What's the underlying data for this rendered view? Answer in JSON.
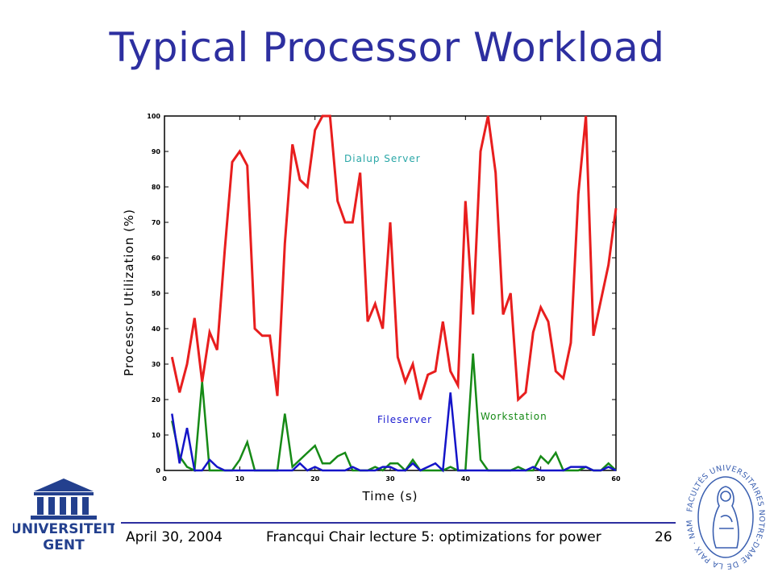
{
  "slide": {
    "title": "Typical Processor Workload"
  },
  "footer": {
    "date": "April 30, 2004",
    "lecture": "Francqui Chair lecture 5: optimizations for power",
    "page": "26"
  },
  "logos": {
    "left_text_top": "UNIVERSITEIT",
    "left_text_bottom": "GENT",
    "right_seal_text": "FACULTÉS UNIVERSITAIRES NOTRE-DAME DE LA PAIX · NAMUR"
  },
  "colors": {
    "title": "#2d2fa0",
    "dialup": "#e81e1e",
    "fileserver": "#1414c8",
    "workstation": "#168a16",
    "dialup_label": "#2aa7a7",
    "fileserver_label": "#1a1ad0",
    "workstation_label": "#168a16"
  },
  "chart_data": {
    "type": "line",
    "xlabel": "Time (s)",
    "ylabel": "Processor Utilization (%)",
    "xlim": [
      0,
      60
    ],
    "ylim": [
      0,
      100
    ],
    "xticks": [
      0,
      10,
      20,
      30,
      40,
      50,
      60
    ],
    "yticks": [
      0,
      10,
      20,
      30,
      40,
      50,
      60,
      70,
      80,
      90,
      100
    ],
    "grid": false,
    "x": [
      1,
      2,
      3,
      4,
      5,
      6,
      7,
      8,
      9,
      10,
      11,
      12,
      13,
      14,
      15,
      16,
      17,
      18,
      19,
      20,
      21,
      22,
      23,
      24,
      25,
      26,
      27,
      28,
      29,
      30,
      31,
      32,
      33,
      34,
      35,
      36,
      37,
      38,
      39,
      40,
      41,
      42,
      43,
      44,
      45,
      46,
      47,
      48,
      49,
      50,
      51,
      52,
      53,
      54,
      55,
      56,
      57,
      58,
      59,
      60
    ],
    "series": [
      {
        "name": "Dialup Server",
        "values": [
          32,
          22,
          30,
          43,
          25,
          39,
          34,
          62,
          87,
          90,
          86,
          40,
          38,
          38,
          21,
          64,
          92,
          82,
          80,
          96,
          100,
          100,
          76,
          70,
          70,
          84,
          42,
          47,
          40,
          70,
          32,
          25,
          30,
          20,
          27,
          28,
          42,
          28,
          24,
          76,
          44,
          90,
          100,
          84,
          44,
          50,
          20,
          22,
          39,
          46,
          42,
          28,
          26,
          36,
          78,
          100,
          38,
          48,
          58,
          74
        ]
      },
      {
        "name": "Fileserver",
        "values": [
          16,
          2,
          12,
          0,
          0,
          3,
          1,
          0,
          0,
          0,
          0,
          0,
          0,
          0,
          0,
          0,
          0,
          2,
          0,
          1,
          0,
          0,
          0,
          0,
          1,
          0,
          0,
          0,
          1,
          1,
          0,
          0,
          2,
          0,
          1,
          2,
          0,
          22,
          0,
          0,
          0,
          0,
          0,
          0,
          0,
          0,
          0,
          0,
          1,
          0,
          0,
          0,
          0,
          1,
          1,
          1,
          0,
          0,
          1,
          0
        ]
      },
      {
        "name": "Workstation",
        "values": [
          14,
          4,
          1,
          0,
          25,
          0,
          0,
          0,
          0,
          3,
          8,
          0,
          0,
          0,
          0,
          16,
          1,
          3,
          5,
          7,
          2,
          2,
          4,
          5,
          0,
          0,
          0,
          1,
          0,
          2,
          2,
          0,
          3,
          0,
          0,
          0,
          0,
          1,
          0,
          0,
          33,
          3,
          0,
          0,
          0,
          0,
          1,
          0,
          0,
          4,
          2,
          5,
          0,
          0,
          0,
          1,
          0,
          0,
          2,
          0
        ]
      }
    ]
  }
}
